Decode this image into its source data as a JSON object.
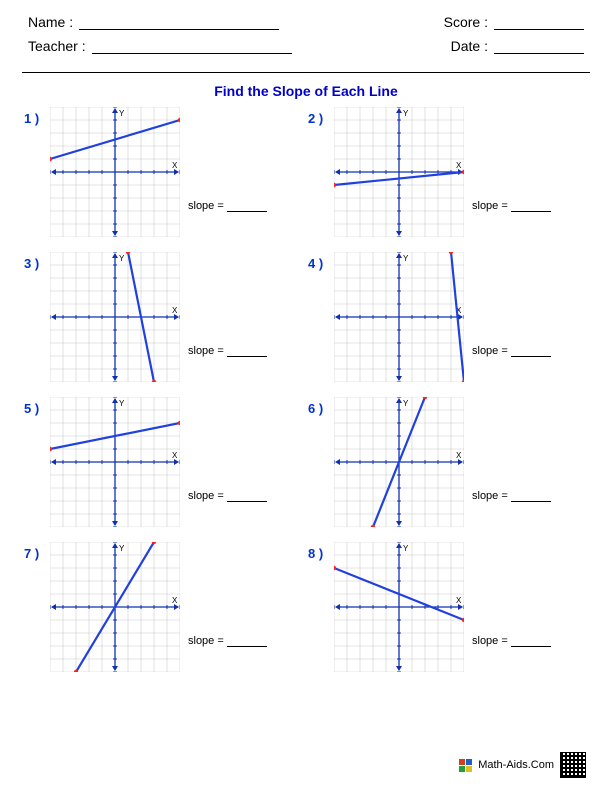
{
  "header": {
    "name_label": "Name :",
    "teacher_label": "Teacher :",
    "score_label": "Score :",
    "date_label": "Date :"
  },
  "title": "Find the Slope of Each Line",
  "slope_label": "slope =",
  "footer": {
    "site": "Math-Aids.Com"
  },
  "graph": {
    "size": 130,
    "range": 5,
    "grid_color": "#cccccc",
    "axis_color": "#1030b0",
    "tick_color": "#1030b0",
    "line_color": "#2040e0",
    "point_color": "#ff2020",
    "line_width": 2.2,
    "point_radius": 2.2,
    "axis_label_color": "#000",
    "axis_label": {
      "x": "X",
      "y": "Y"
    }
  },
  "problems": [
    {
      "num": "1 )",
      "p1": [
        -5,
        1
      ],
      "p2": [
        5,
        4
      ]
    },
    {
      "num": "2 )",
      "p1": [
        -5,
        -1
      ],
      "p2": [
        5,
        0
      ]
    },
    {
      "num": "3 )",
      "p1": [
        1,
        5
      ],
      "p2": [
        3,
        -5
      ]
    },
    {
      "num": "4 )",
      "p1": [
        4,
        5
      ],
      "p2": [
        5,
        -5
      ]
    },
    {
      "num": "5 )",
      "p1": [
        -5,
        1
      ],
      "p2": [
        5,
        3
      ]
    },
    {
      "num": "6 )",
      "p1": [
        -2,
        -5
      ],
      "p2": [
        2,
        5
      ]
    },
    {
      "num": "7 )",
      "p1": [
        -3,
        -5
      ],
      "p2": [
        3,
        5
      ]
    },
    {
      "num": "8 )",
      "p1": [
        -5,
        3
      ],
      "p2": [
        5,
        -1
      ]
    }
  ]
}
